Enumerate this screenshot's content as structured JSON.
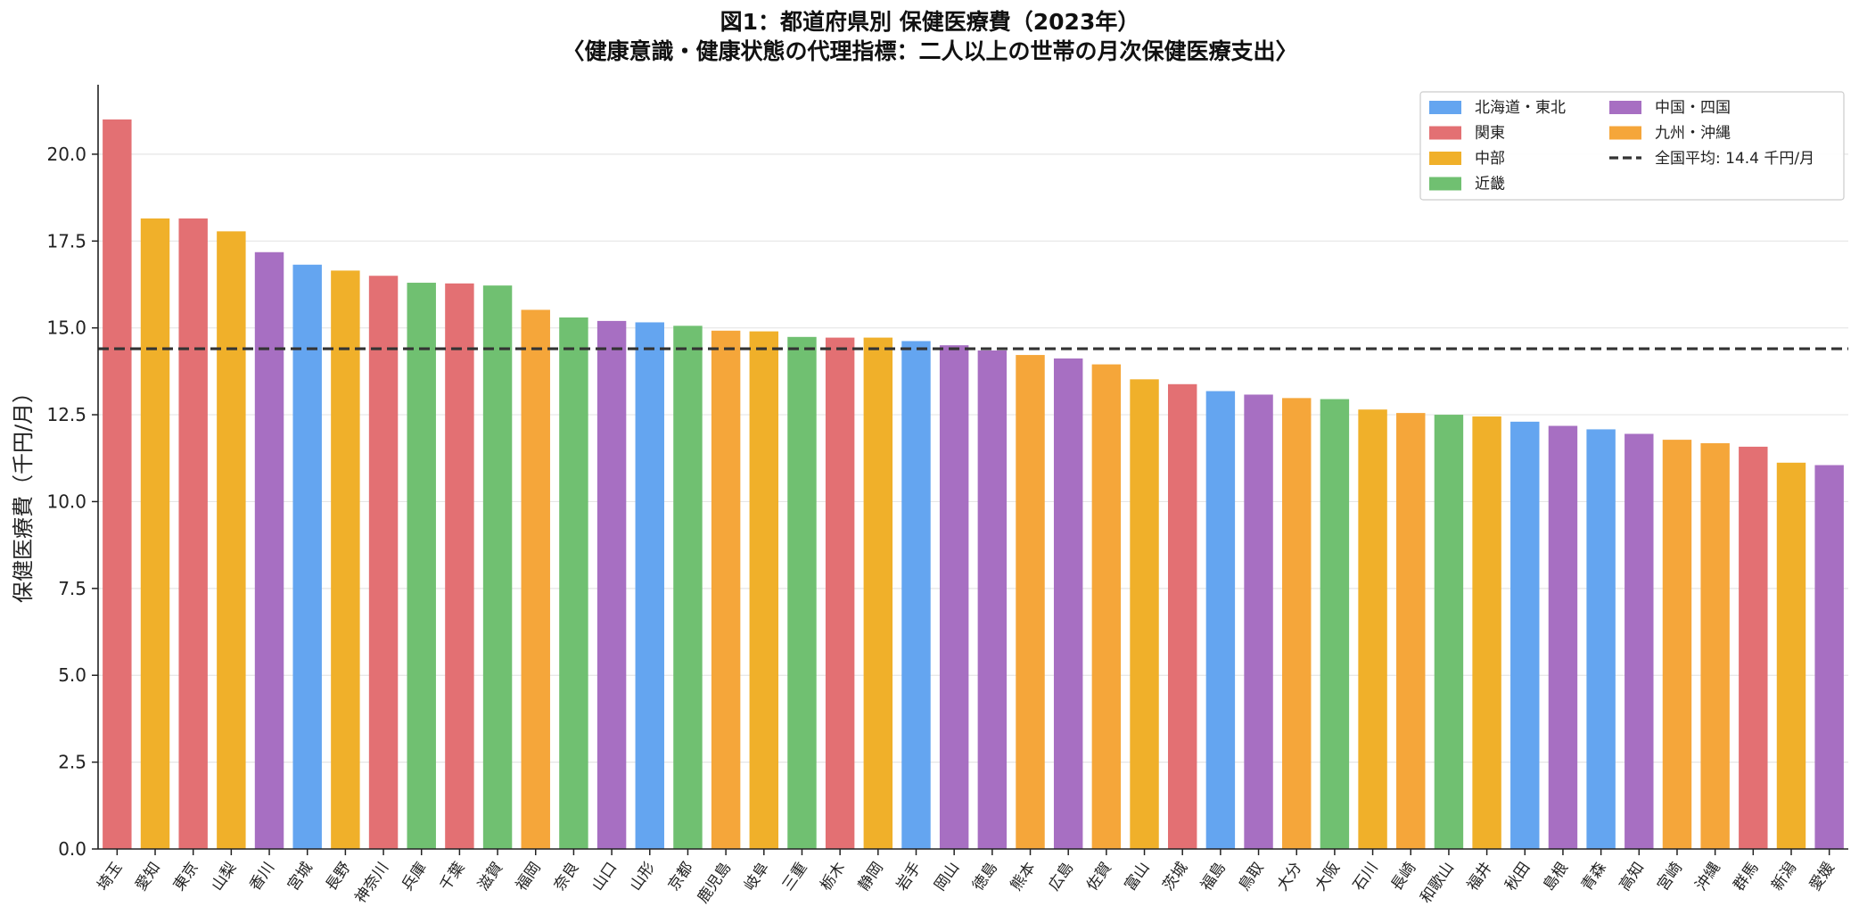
{
  "chart_data": {
    "type": "bar",
    "title": "図1：都道府県別 保健医療費（2023年）",
    "subtitle": "〈健康意識・健康状態の代理指標：二人以上の世帯の月次保健医療支出〉",
    "ylabel": "保健医療費（千円/月）",
    "xlabel": "",
    "ylim": [
      0,
      22
    ],
    "yticks": [
      0.0,
      2.5,
      5.0,
      7.5,
      10.0,
      12.5,
      15.0,
      17.5,
      20.0
    ],
    "ytick_labels": [
      "0.0",
      "2.5",
      "5.0",
      "7.5",
      "10.0",
      "12.5",
      "15.0",
      "17.5",
      "20.0"
    ],
    "grid": "horizontal",
    "legend_position": "top-right",
    "region_colors": {
      "北海道・東北": "#64a5f0",
      "関東": "#e37073",
      "中部": "#f0b02a",
      "近畿": "#70c071",
      "中国・四国": "#a76fc2",
      "九州・沖縄": "#f5a63a"
    },
    "legend": [
      {
        "label": "北海道・東北",
        "type": "patch",
        "region": "北海道・東北"
      },
      {
        "label": "関東",
        "type": "patch",
        "region": "関東"
      },
      {
        "label": "中部",
        "type": "patch",
        "region": "中部"
      },
      {
        "label": "近畿",
        "type": "patch",
        "region": "近畿"
      },
      {
        "label": "中国・四国",
        "type": "patch",
        "region": "中国・四国"
      },
      {
        "label": "九州・沖縄",
        "type": "patch",
        "region": "九州・沖縄"
      },
      {
        "label": "全国平均: 14.4 千円/月",
        "type": "line"
      }
    ],
    "average_line": {
      "value": 14.4,
      "color": "#333333",
      "style": "dashed"
    },
    "categories": [
      "埼玉",
      "愛知",
      "東京",
      "山梨",
      "香川",
      "宮城",
      "長野",
      "神奈川",
      "兵庫",
      "千葉",
      "滋賀",
      "福岡",
      "奈良",
      "山口",
      "山形",
      "京都",
      "鹿児島",
      "岐阜",
      "三重",
      "栃木",
      "静岡",
      "岩手",
      "岡山",
      "徳島",
      "熊本",
      "広島",
      "佐賀",
      "富山",
      "茨城",
      "福島",
      "鳥取",
      "大分",
      "大阪",
      "石川",
      "長崎",
      "和歌山",
      "福井",
      "秋田",
      "島根",
      "青森",
      "高知",
      "宮崎",
      "沖縄",
      "群馬",
      "新潟",
      "愛媛"
    ],
    "values": [
      21.0,
      18.15,
      18.15,
      17.78,
      17.18,
      16.82,
      16.65,
      16.5,
      16.3,
      16.28,
      16.22,
      15.52,
      15.3,
      15.2,
      15.16,
      15.06,
      14.92,
      14.9,
      14.74,
      14.72,
      14.72,
      14.62,
      14.5,
      14.35,
      14.22,
      14.12,
      13.95,
      13.52,
      13.38,
      13.18,
      13.08,
      12.98,
      12.95,
      12.65,
      12.55,
      12.5,
      12.45,
      12.3,
      12.18,
      12.08,
      11.95,
      11.78,
      11.68,
      11.58,
      11.12,
      11.05
    ],
    "regions": [
      "関東",
      "中部",
      "関東",
      "中部",
      "中国・四国",
      "北海道・東北",
      "中部",
      "関東",
      "近畿",
      "関東",
      "近畿",
      "九州・沖縄",
      "近畿",
      "中国・四国",
      "北海道・東北",
      "近畿",
      "九州・沖縄",
      "中部",
      "近畿",
      "関東",
      "中部",
      "北海道・東北",
      "中国・四国",
      "中国・四国",
      "九州・沖縄",
      "中国・四国",
      "九州・沖縄",
      "中部",
      "関東",
      "北海道・東北",
      "中国・四国",
      "九州・沖縄",
      "近畿",
      "中部",
      "九州・沖縄",
      "近畿",
      "中部",
      "北海道・東北",
      "中国・四国",
      "北海道・東北",
      "中国・四国",
      "九州・沖縄",
      "九州・沖縄",
      "関東",
      "中部",
      "中国・四国"
    ]
  }
}
